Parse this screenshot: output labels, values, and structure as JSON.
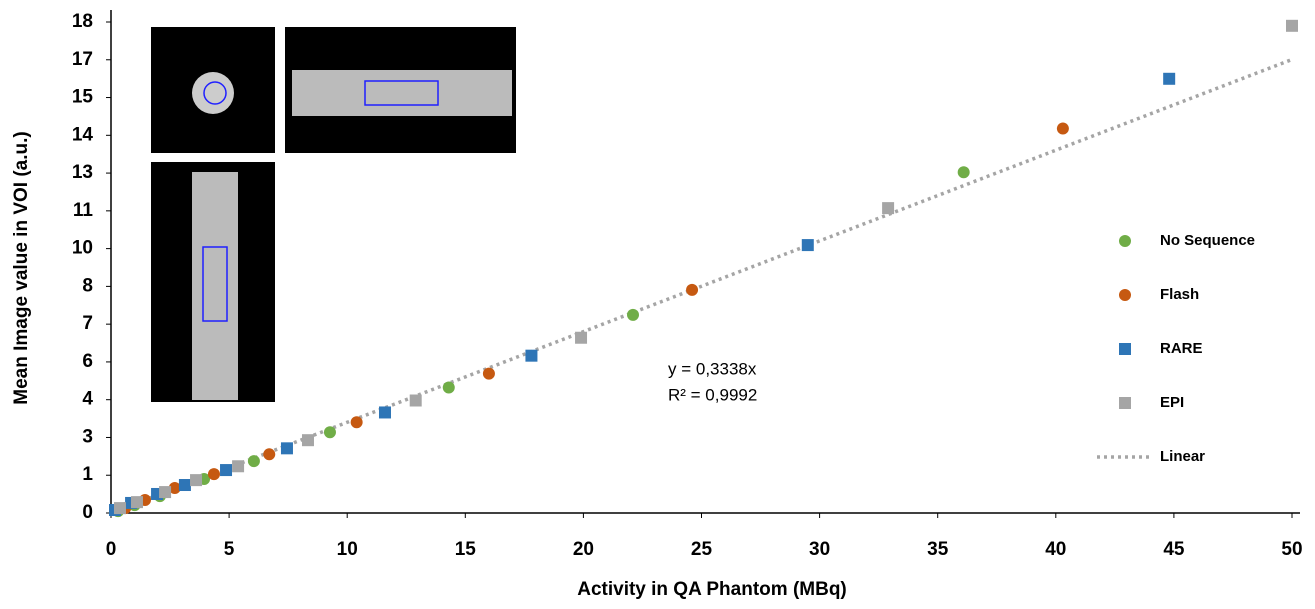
{
  "chart_data": {
    "type": "scatter",
    "xlabel": "Activity in QA Phantom (MBq)",
    "ylabel": "Mean Image value in VOI (a.u.)",
    "xlim": [
      0,
      50
    ],
    "xticks": [
      0,
      5,
      10,
      15,
      20,
      25,
      30,
      35,
      40,
      45,
      50
    ],
    "ylim": [
      0,
      18.07
    ],
    "yticks": [
      0,
      {
        "value": 1.39,
        "label": "1"
      },
      {
        "value": 2.78,
        "label": "3"
      },
      {
        "value": 4.17,
        "label": "4"
      },
      {
        "value": 5.56,
        "label": "6"
      },
      {
        "value": 6.95,
        "label": "7"
      },
      {
        "value": 8.34,
        "label": "8"
      },
      {
        "value": 9.73,
        "label": "10"
      },
      {
        "value": 11.12,
        "label": "11"
      },
      {
        "value": 12.51,
        "label": "13"
      },
      {
        "value": 13.9,
        "label": "14"
      },
      {
        "value": 15.29,
        "label": "15"
      },
      {
        "value": 16.68,
        "label": "17"
      },
      {
        "value": 18.07,
        "label": "18"
      }
    ],
    "annotations": [
      "y = 0,3338x",
      "R² = 0,9992"
    ],
    "series": [
      {
        "name": "No Sequence",
        "color": "#70ad47",
        "marker": "circle",
        "x": [
          0.3,
          1.0,
          2.07,
          3.94,
          6.05,
          9.27,
          14.3,
          22.1,
          36.1
        ],
        "values": [
          0.07,
          0.29,
          0.62,
          1.25,
          1.91,
          2.97,
          4.62,
          7.29,
          12.54
        ]
      },
      {
        "name": "Flash",
        "color": "#c65911",
        "marker": "circle",
        "x": [
          0.6,
          1.44,
          2.7,
          4.36,
          6.7,
          10.4,
          16.0,
          24.6,
          40.3
        ],
        "values": [
          0.18,
          0.48,
          0.92,
          1.43,
          2.16,
          3.34,
          5.13,
          8.21,
          14.15
        ]
      },
      {
        "name": "RARE",
        "color": "#2e75b6",
        "marker": "square",
        "x": [
          0.17,
          0.85,
          1.95,
          3.13,
          4.87,
          7.45,
          11.6,
          17.8,
          29.5,
          44.8
        ],
        "values": [
          0.11,
          0.37,
          0.7,
          1.03,
          1.58,
          2.38,
          3.7,
          5.79,
          9.86,
          15.98
        ]
      },
      {
        "name": "EPI",
        "color": "#a5a5a5",
        "marker": "square",
        "x": [
          0.38,
          1.1,
          2.29,
          3.6,
          5.38,
          8.34,
          12.9,
          19.9,
          32.9,
          50
        ],
        "values": [
          0.18,
          0.4,
          0.77,
          1.21,
          1.72,
          2.68,
          4.14,
          6.45,
          11.22,
          17.93
        ]
      },
      {
        "name": "Linear",
        "color": "#a5a5a5",
        "marker": "dotted-line",
        "x": [
          0,
          50
        ],
        "values": [
          0,
          16.69
        ]
      }
    ]
  }
}
